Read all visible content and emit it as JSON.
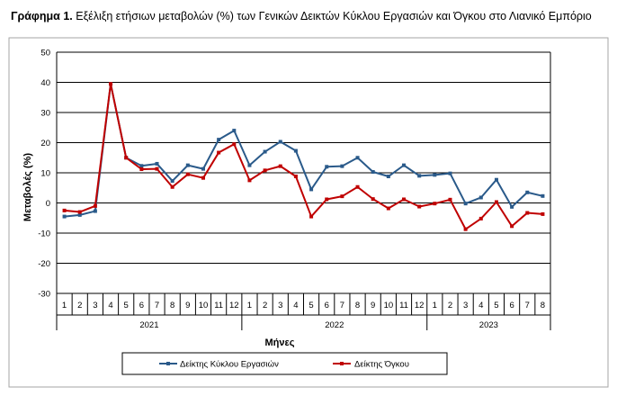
{
  "figure": {
    "title_lead": "Γράφημα 1.",
    "title_text": "Εξέλιξη ετήσιων μεταβολών (%) των Γενικών Δεικτών Κύκλου Εργασιών και Όγκου στο Λιανικό Εμπόριο"
  },
  "chart_data": {
    "type": "line",
    "xlabel": "Μήνες",
    "ylabel": "Μεταβολές (%)",
    "ylim": [
      -30,
      50
    ],
    "yticks": [
      -30,
      -20,
      -10,
      0,
      10,
      20,
      30,
      40,
      50
    ],
    "grid": true,
    "legend_position": "bottom",
    "months": [
      "1",
      "2",
      "3",
      "4",
      "5",
      "6",
      "7",
      "8",
      "9",
      "10",
      "11",
      "12",
      "1",
      "2",
      "3",
      "4",
      "5",
      "6",
      "7",
      "8",
      "9",
      "10",
      "11",
      "12",
      "1",
      "2",
      "3",
      "4",
      "5",
      "6",
      "7",
      "8"
    ],
    "years": [
      {
        "label": "2021",
        "count": 12
      },
      {
        "label": "2022",
        "count": 12
      },
      {
        "label": "2023",
        "count": 8
      }
    ],
    "series": [
      {
        "name": "Δείκτης Κύκλου Εργασιών",
        "color": "#2a5a8a",
        "values": [
          -4.5,
          -4,
          -2.7,
          39.5,
          15,
          12.3,
          13,
          7.3,
          12.5,
          11.3,
          21,
          24,
          12.5,
          17,
          20.3,
          17.3,
          4.5,
          12,
          12.2,
          15,
          10.3,
          8.8,
          12.5,
          9,
          9.3,
          9.8,
          -0.2,
          1.8,
          7.7,
          -1.3,
          3.5,
          2.3
        ]
      },
      {
        "name": "Δείκτης Όγκου",
        "color": "#c00000",
        "values": [
          -2.5,
          -3,
          -1,
          39.5,
          15,
          11.2,
          11.3,
          5.3,
          9.5,
          8.3,
          16.7,
          19.5,
          7.5,
          10.8,
          12.2,
          8.8,
          -4.5,
          1.2,
          2.2,
          5.3,
          1.3,
          -1.8,
          1.2,
          -1.2,
          -0.2,
          1.1,
          -8.7,
          -5.2,
          0.3,
          -7.7,
          -3.3,
          -3.7
        ]
      }
    ]
  }
}
